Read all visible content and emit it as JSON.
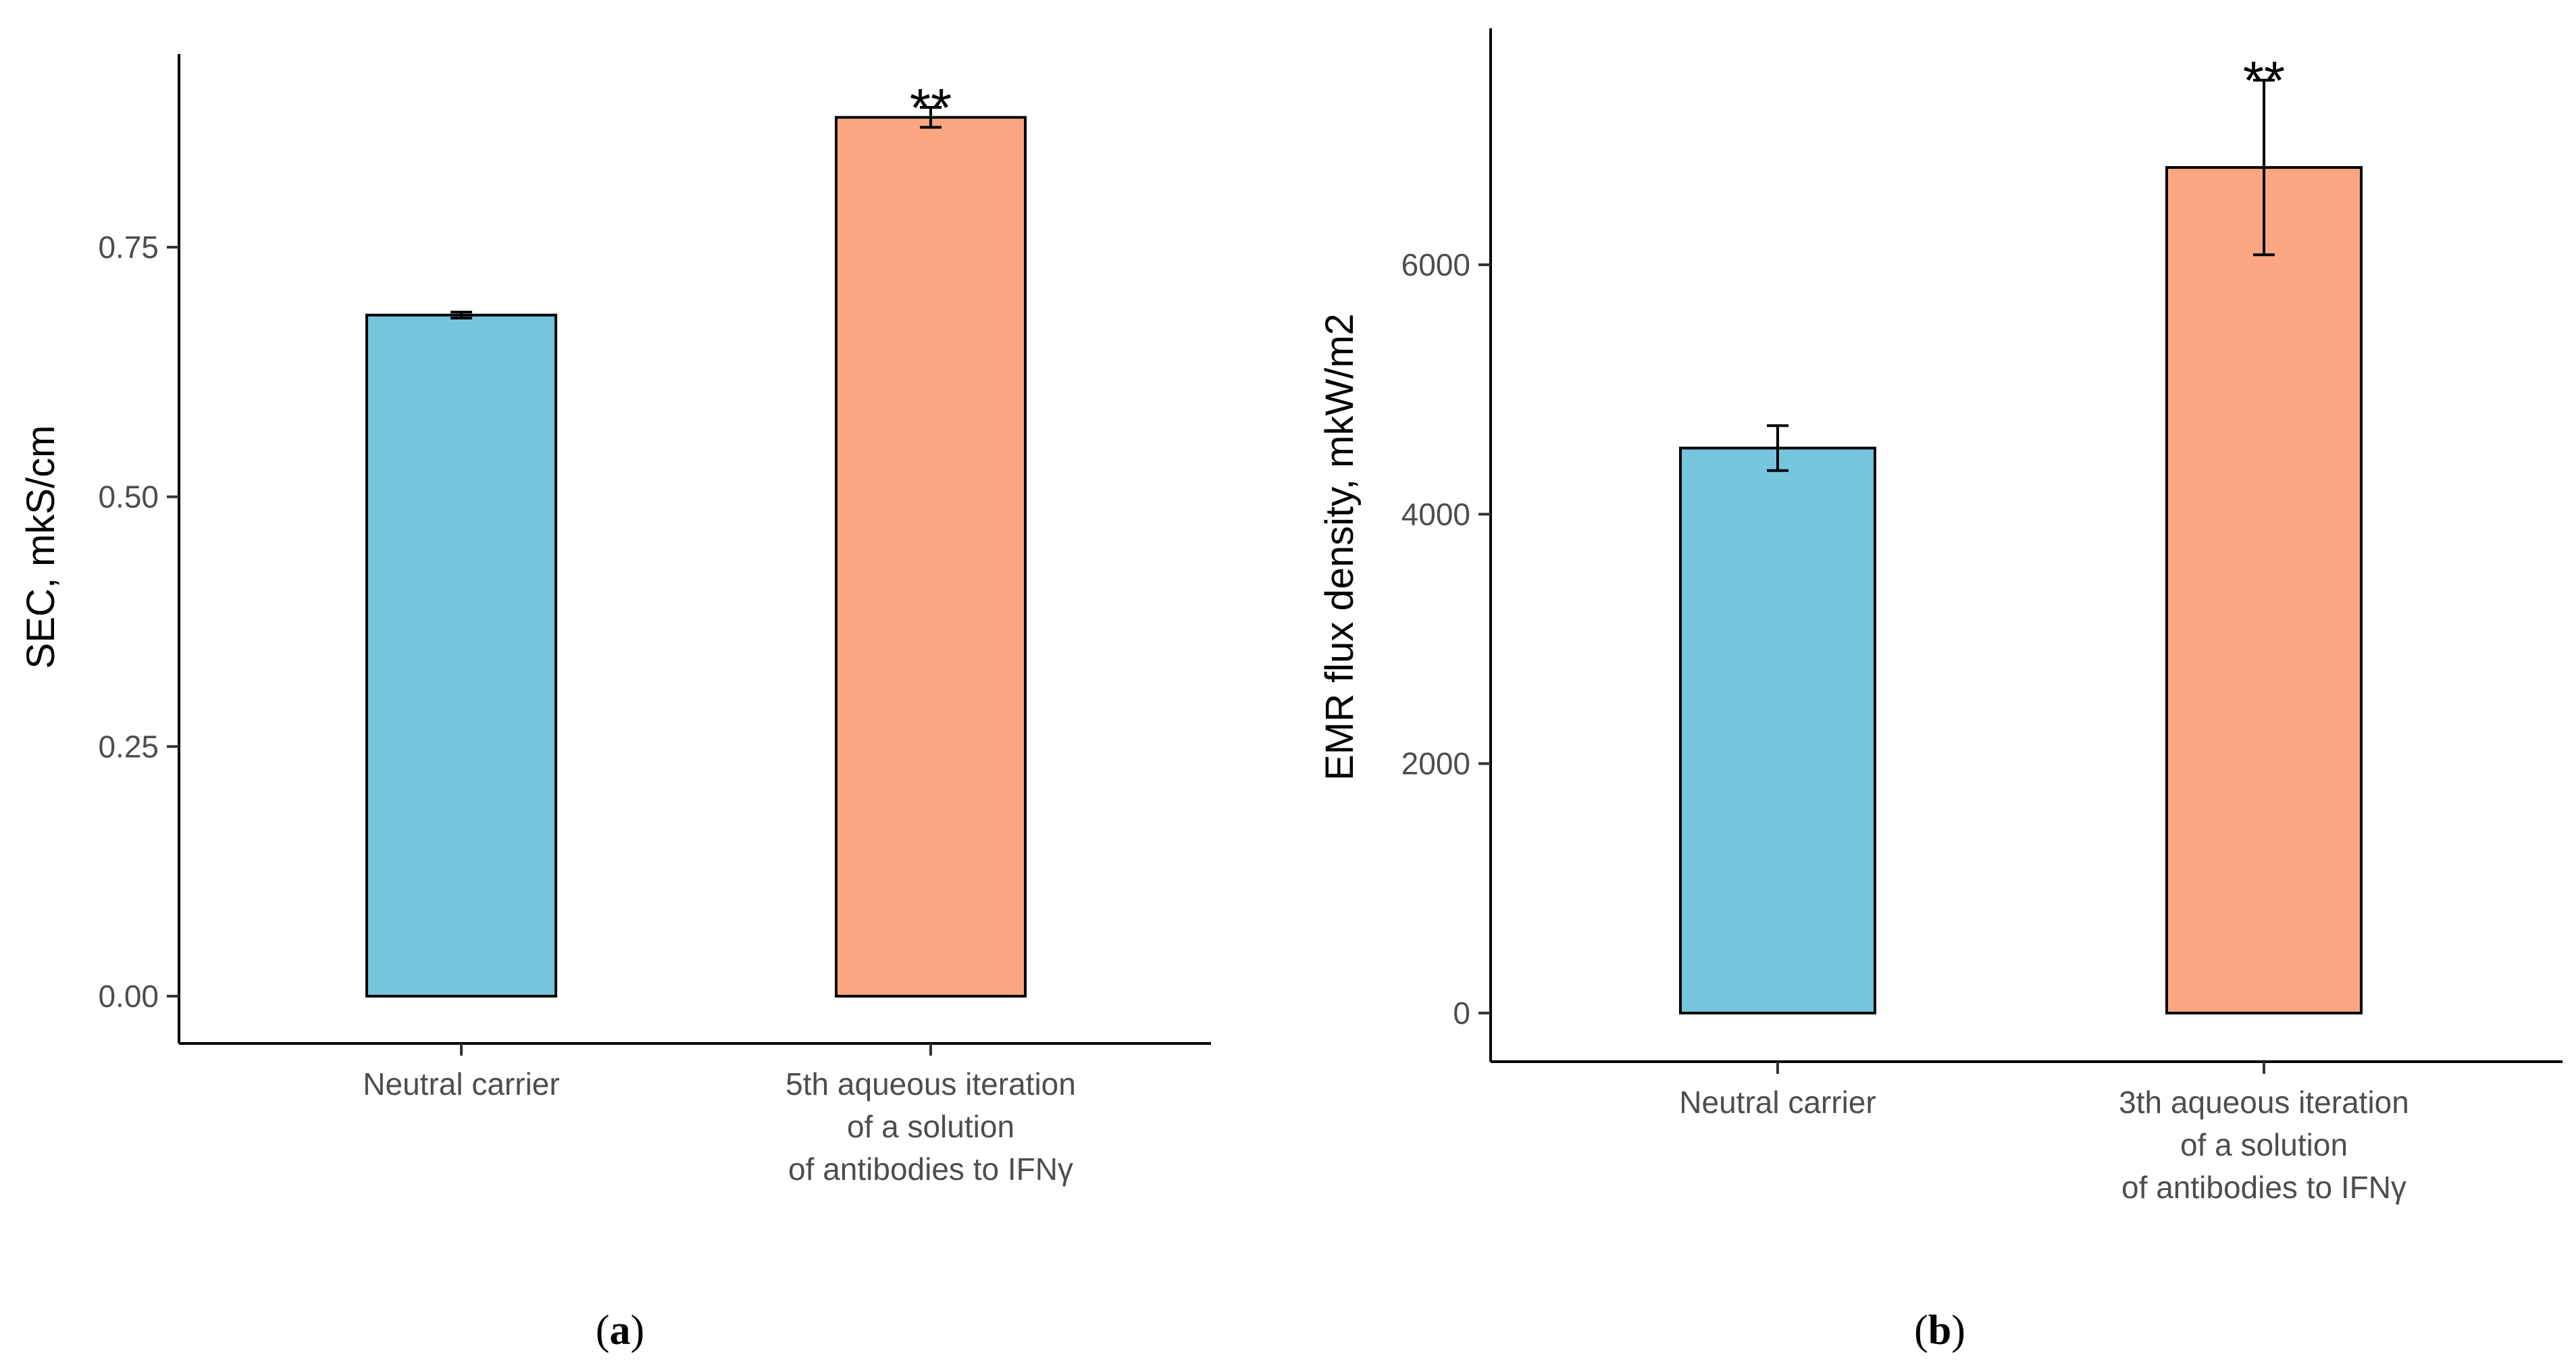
{
  "chart_data": [
    {
      "type": "bar",
      "panel_label": "a",
      "ylabel": "SEC, mkS/cm",
      "ylim": [
        0,
        0.9
      ],
      "yticks": [
        "0.00",
        "0.25",
        "0.50",
        "0.75"
      ],
      "categories": [
        [
          "Neutral carrier"
        ],
        [
          "5th aqueous iteration",
          "of a solution",
          "of antibodies to IFNγ"
        ]
      ],
      "values": [
        0.682,
        0.88
      ],
      "errors": [
        0.003,
        0.01
      ],
      "significance": [
        "",
        "**"
      ],
      "colors": [
        "#76c5de",
        "#fca682"
      ],
      "grid": false
    },
    {
      "type": "bar",
      "panel_label": "b",
      "ylabel": "EMR flux density, mkW/m2",
      "ylim": [
        0,
        7500
      ],
      "yticks": [
        "0",
        "2000",
        "4000",
        "6000"
      ],
      "categories": [
        [
          "Neutral carrier"
        ],
        [
          "3th aqueous iteration",
          "of a solution",
          "of antibodies to IFNγ"
        ]
      ],
      "values": [
        4530,
        6780
      ],
      "errors": [
        180,
        700
      ],
      "significance": [
        "",
        "**"
      ],
      "colors": [
        "#76c5de",
        "#fca682"
      ],
      "grid": false
    }
  ]
}
